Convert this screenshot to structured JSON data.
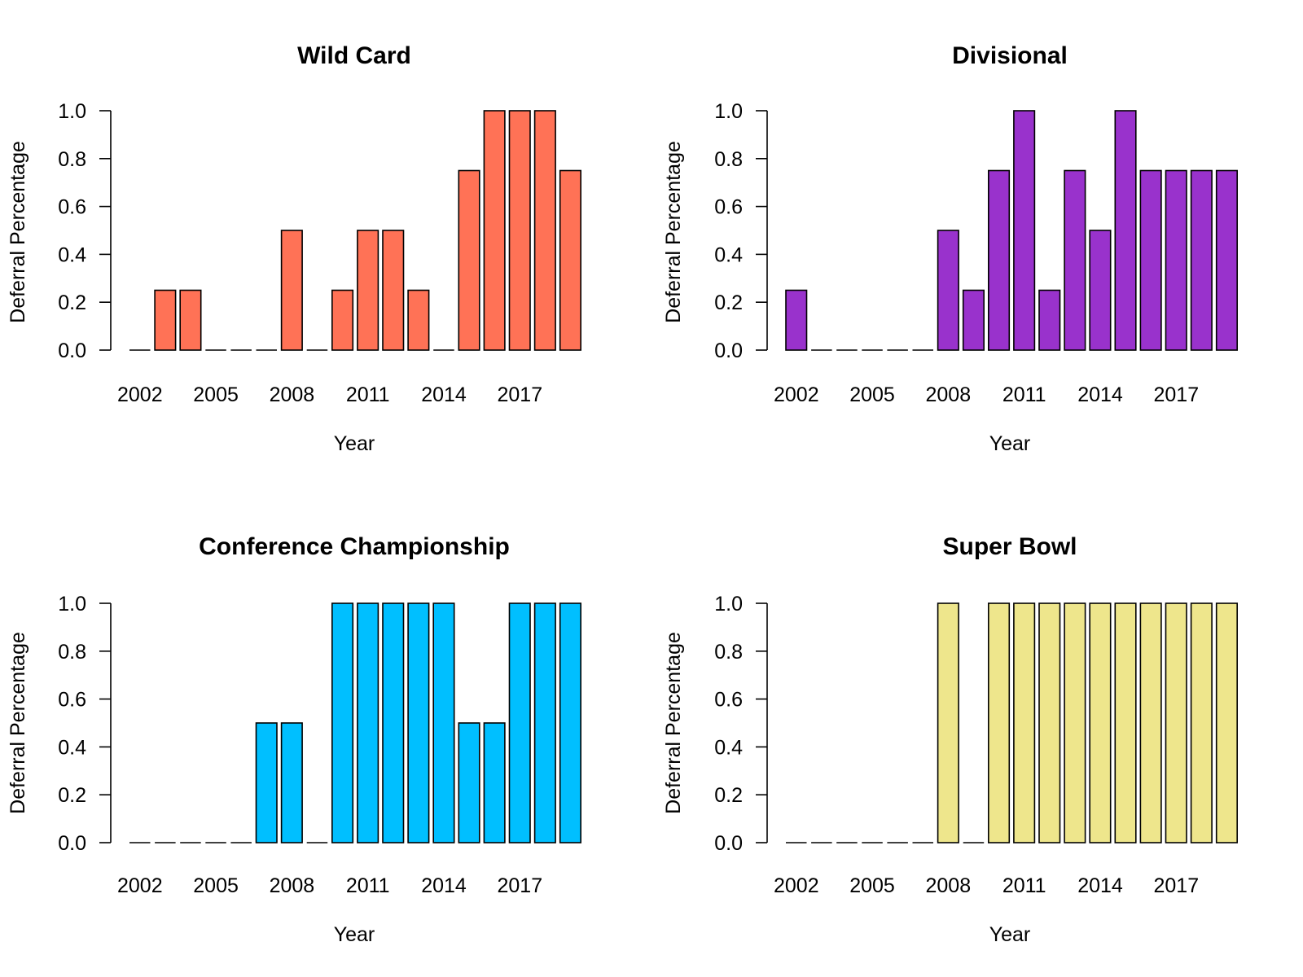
{
  "chart_data": [
    {
      "type": "bar",
      "title": "Wild Card",
      "xlabel": "Year",
      "ylabel": "Deferral Percentage",
      "categories": [
        "2002",
        "2003",
        "2004",
        "2005",
        "2006",
        "2007",
        "2008",
        "2009",
        "2010",
        "2011",
        "2012",
        "2013",
        "2014",
        "2015",
        "2016",
        "2017",
        "2018",
        "2019"
      ],
      "values": [
        0,
        0.25,
        0.25,
        0,
        0,
        0,
        0.5,
        0,
        0.25,
        0.5,
        0.5,
        0.25,
        0,
        0.75,
        1.0,
        1.0,
        1.0,
        0.75
      ],
      "xtick_labels": [
        "2002",
        "2005",
        "2008",
        "2011",
        "2014",
        "2017"
      ],
      "ytick_labels": [
        "0.0",
        "0.2",
        "0.4",
        "0.6",
        "0.8",
        "1.0"
      ],
      "ylim": [
        0,
        1.0
      ],
      "color": "#FF7256",
      "grid": false,
      "legend": "none"
    },
    {
      "type": "bar",
      "title": "Divisional",
      "xlabel": "Year",
      "ylabel": "Deferral Percentage",
      "categories": [
        "2002",
        "2003",
        "2004",
        "2005",
        "2006",
        "2007",
        "2008",
        "2009",
        "2010",
        "2011",
        "2012",
        "2013",
        "2014",
        "2015",
        "2016",
        "2017",
        "2018",
        "2019"
      ],
      "values": [
        0.25,
        0,
        0,
        0,
        0,
        0,
        0.5,
        0.25,
        0.75,
        1.0,
        0.25,
        0.75,
        0.5,
        1.0,
        0.75,
        0.75,
        0.75,
        0.75
      ],
      "xtick_labels": [
        "2002",
        "2005",
        "2008",
        "2011",
        "2014",
        "2017"
      ],
      "ytick_labels": [
        "0.0",
        "0.2",
        "0.4",
        "0.6",
        "0.8",
        "1.0"
      ],
      "ylim": [
        0,
        1.0
      ],
      "color": "#9932CC",
      "grid": false,
      "legend": "none"
    },
    {
      "type": "bar",
      "title": "Conference Championship",
      "xlabel": "Year",
      "ylabel": "Deferral Percentage",
      "categories": [
        "2002",
        "2003",
        "2004",
        "2005",
        "2006",
        "2007",
        "2008",
        "2009",
        "2010",
        "2011",
        "2012",
        "2013",
        "2014",
        "2015",
        "2016",
        "2017",
        "2018",
        "2019"
      ],
      "values": [
        0,
        0,
        0,
        0,
        0,
        0.5,
        0.5,
        0,
        1.0,
        1.0,
        1.0,
        1.0,
        1.0,
        0.5,
        0.5,
        1.0,
        1.0,
        1.0
      ],
      "xtick_labels": [
        "2002",
        "2005",
        "2008",
        "2011",
        "2014",
        "2017"
      ],
      "ytick_labels": [
        "0.0",
        "0.2",
        "0.4",
        "0.6",
        "0.8",
        "1.0"
      ],
      "ylim": [
        0,
        1.0
      ],
      "color": "#00BFFF",
      "grid": false,
      "legend": "none"
    },
    {
      "type": "bar",
      "title": "Super Bowl",
      "xlabel": "Year",
      "ylabel": "Deferral Percentage",
      "categories": [
        "2002",
        "2003",
        "2004",
        "2005",
        "2006",
        "2007",
        "2008",
        "2009",
        "2010",
        "2011",
        "2012",
        "2013",
        "2014",
        "2015",
        "2016",
        "2017",
        "2018",
        "2019"
      ],
      "values": [
        0,
        0,
        0,
        0,
        0,
        0,
        1.0,
        0,
        1.0,
        1.0,
        1.0,
        1.0,
        1.0,
        1.0,
        1.0,
        1.0,
        1.0,
        1.0
      ],
      "xtick_labels": [
        "2002",
        "2005",
        "2008",
        "2011",
        "2014",
        "2017"
      ],
      "ytick_labels": [
        "0.0",
        "0.2",
        "0.4",
        "0.6",
        "0.8",
        "1.0"
      ],
      "ylim": [
        0,
        1.0
      ],
      "color": "#EEE68C",
      "grid": false,
      "legend": "none"
    }
  ]
}
